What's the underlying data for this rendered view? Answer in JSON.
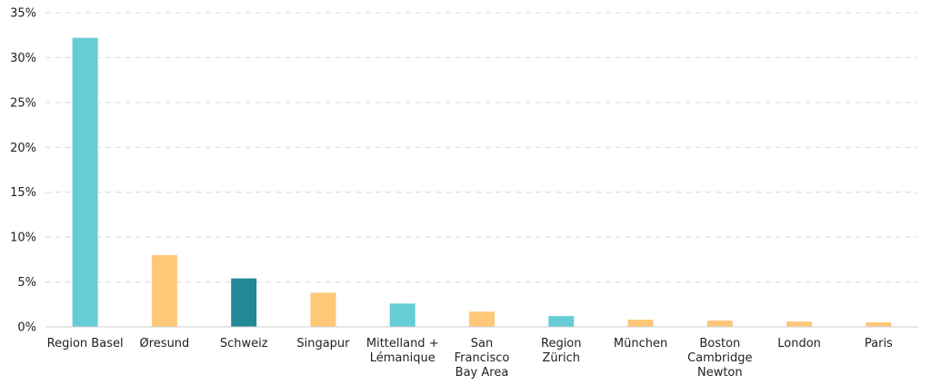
{
  "chart_data": {
    "type": "bar",
    "categories": [
      [
        "Region Basel"
      ],
      [
        "Øresund"
      ],
      [
        "Schweiz"
      ],
      [
        "Singapur"
      ],
      [
        "Mittelland +",
        "Lémanique"
      ],
      [
        "San",
        "Francisco",
        "Bay Area"
      ],
      [
        "Region",
        "Zürich"
      ],
      [
        "München"
      ],
      [
        "Boston",
        "Cambridge",
        "Newton"
      ],
      [
        "London"
      ],
      [
        "Paris"
      ]
    ],
    "values": [
      32.2,
      8.0,
      5.4,
      3.8,
      2.6,
      1.7,
      1.2,
      0.8,
      0.7,
      0.6,
      0.5
    ],
    "bar_colors": [
      "#66ccd6",
      "#ffc778",
      "#218896",
      "#ffc778",
      "#66ccd6",
      "#ffc778",
      "#66ccd6",
      "#ffc778",
      "#ffc778",
      "#ffc778",
      "#ffc778"
    ],
    "y_ticks": [
      "0%",
      "5%",
      "10%",
      "15%",
      "20%",
      "25%",
      "30%",
      "35%"
    ],
    "ylim": [
      0,
      35
    ],
    "y_unit": "%",
    "grid": true,
    "title": "",
    "xlabel": "",
    "ylabel": ""
  }
}
